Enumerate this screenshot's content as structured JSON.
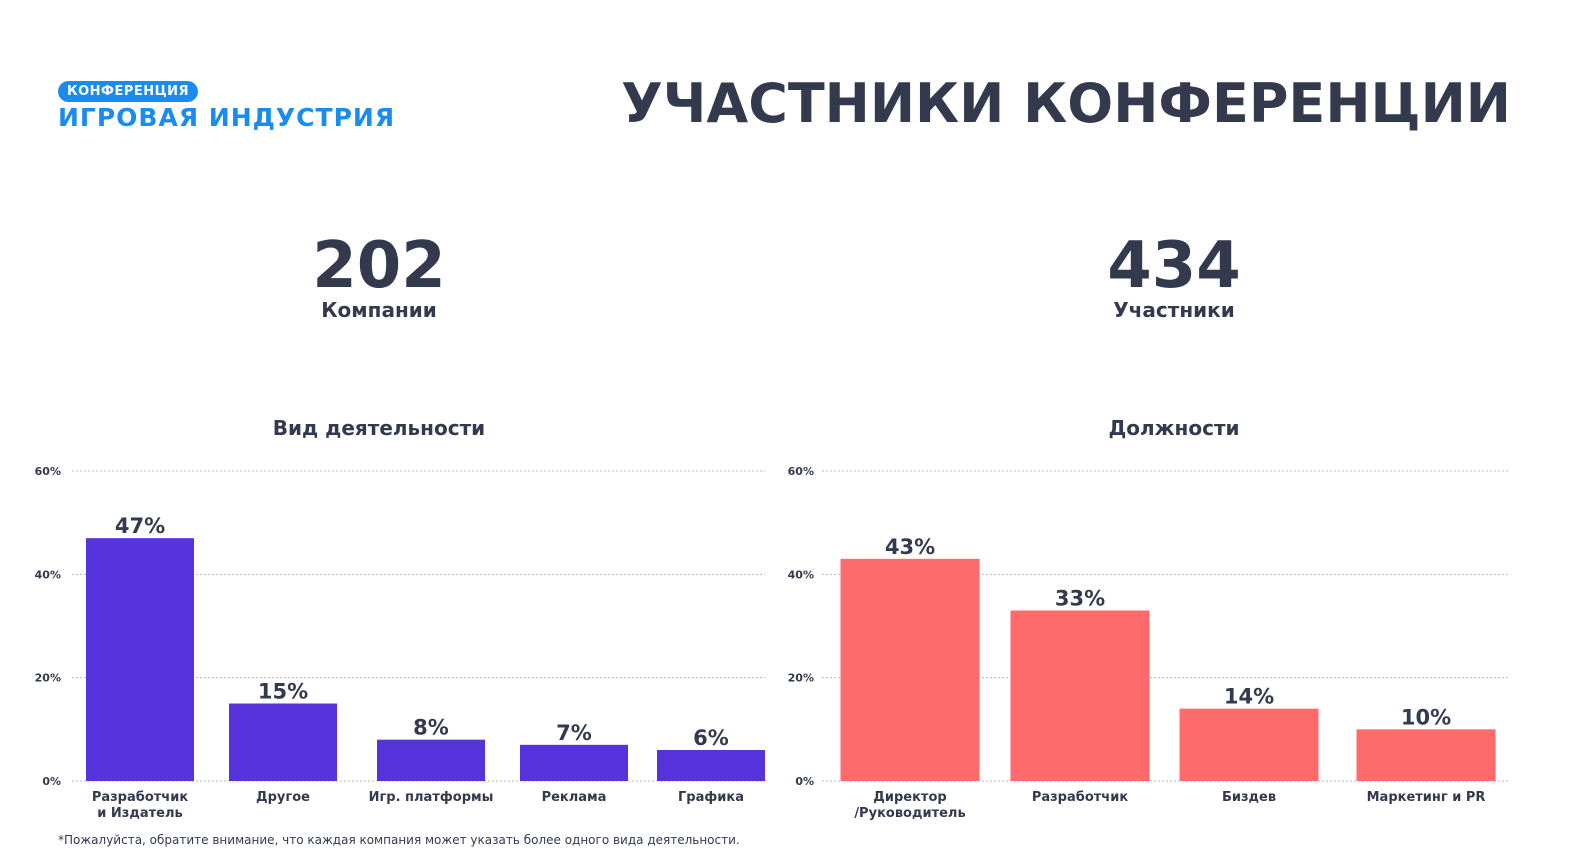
{
  "logo": {
    "badge": "КОНФЕРЕНЦИЯ",
    "name": "ИГРОВАЯ ИНДУСТРИЯ"
  },
  "title": "УЧАСТНИКИ КОНФЕРЕНЦИИ",
  "stats": [
    {
      "value": "202",
      "label": "Компании"
    },
    {
      "value": "434",
      "label": "Участники"
    }
  ],
  "colors": {
    "text": "#333a4d",
    "brand": "#1a8cf0",
    "series_activity": "#5733dc",
    "series_positions": "#ff6b6b",
    "grid": "#b8b8b8"
  },
  "chart_data": [
    {
      "type": "bar",
      "title": "Вид деятельности",
      "categories": [
        [
          "Разработчик",
          "и Издатель"
        ],
        [
          "Другое"
        ],
        [
          "Игр. платформы"
        ],
        [
          "Реклама"
        ],
        [
          "Графика"
        ]
      ],
      "values": [
        47,
        15,
        8,
        7,
        6
      ],
      "value_labels": [
        "47%",
        "15%",
        "8%",
        "7%",
        "6%"
      ],
      "color": "#5733dc",
      "ylim": [
        0,
        60
      ],
      "yticks": [
        0,
        20,
        40,
        60
      ],
      "ytick_labels": [
        "0%",
        "20%",
        "40%",
        "60%"
      ],
      "grid": true,
      "xlabel": "",
      "ylabel": ""
    },
    {
      "type": "bar",
      "title": "Должности",
      "categories": [
        [
          "Директор",
          "/Руководитель"
        ],
        [
          "Разработчик"
        ],
        [
          "Биздев"
        ],
        [
          "Маркетинг и PR"
        ]
      ],
      "values": [
        43,
        33,
        14,
        10
      ],
      "value_labels": [
        "43%",
        "33%",
        "14%",
        "10%"
      ],
      "color": "#ff6b6b",
      "ylim": [
        0,
        60
      ],
      "yticks": [
        0,
        20,
        40,
        60
      ],
      "ytick_labels": [
        "0%",
        "20%",
        "40%",
        "60%"
      ],
      "grid": true,
      "xlabel": "",
      "ylabel": ""
    }
  ],
  "footnote": "*Пожалуйста, обратите внимание, что каждая компания может указать более одного вида деятельности."
}
